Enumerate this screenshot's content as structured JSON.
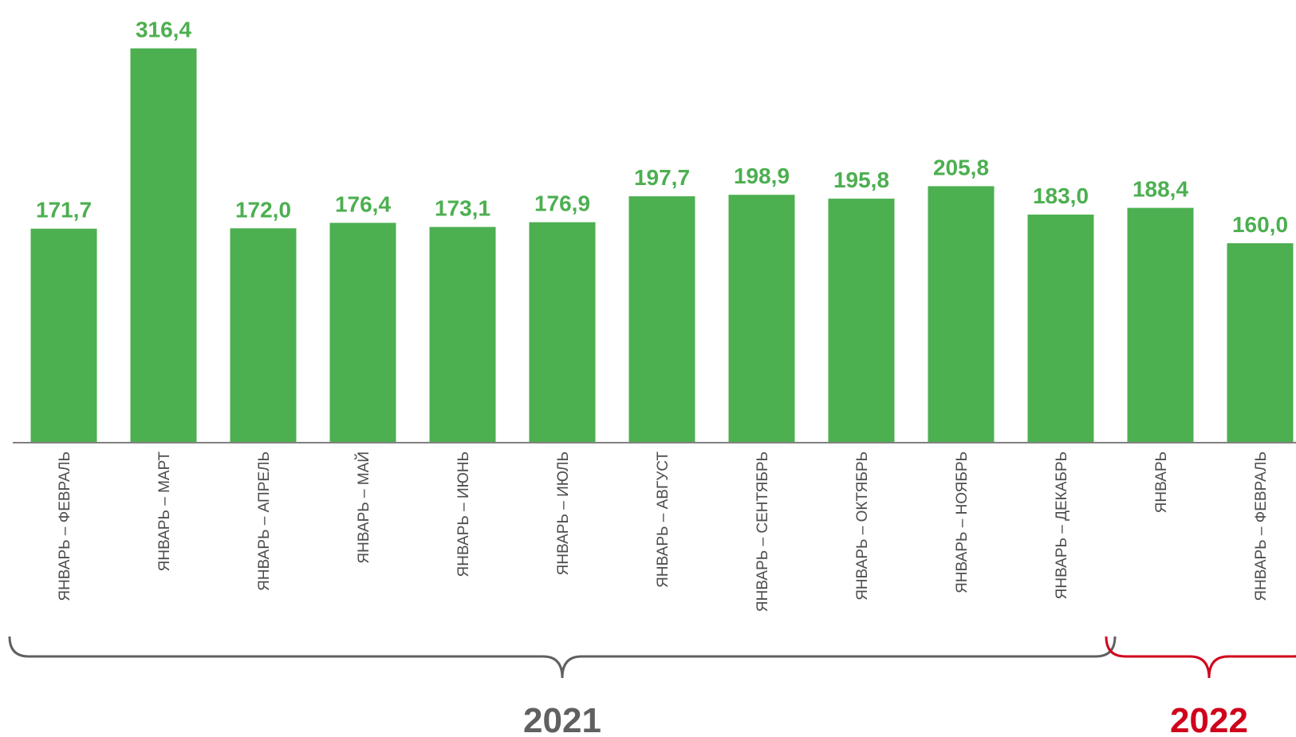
{
  "chart_data": {
    "type": "bar",
    "categories": [
      "ЯНВАРЬ – ФЕВРАЛЬ",
      "ЯНВАРЬ – МАРТ",
      "ЯНВАРЬ – АПРЕЛЬ",
      "ЯНВАРЬ – МАЙ",
      "ЯНВАРЬ – ИЮНЬ",
      "ЯНВАРЬ – ИЮЛЬ",
      "ЯНВАРЬ – АВГУСТ",
      "ЯНВАРЬ – СЕНТЯБРЬ",
      "ЯНВАРЬ – ОКТЯБРЬ",
      "ЯНВАРЬ – НОЯБРЬ",
      "ЯНВАРЬ – ДЕКАБРЬ",
      "ЯНВАРЬ",
      "ЯНВАРЬ – ФЕВРАЛЬ"
    ],
    "values": [
      171.7,
      316.4,
      172.0,
      176.4,
      173.1,
      176.9,
      197.7,
      198.9,
      195.8,
      205.8,
      183.0,
      188.4,
      160.0
    ],
    "value_labels": [
      "171,7",
      "316,4",
      "172,0",
      "176,4",
      "173,1",
      "176,9",
      "197,7",
      "198,9",
      "195,8",
      "205,8",
      "183,0",
      "188,4",
      "160,0"
    ],
    "ylim": [
      0,
      350
    ],
    "grid": false,
    "bar_color": "#4caf50",
    "groups": [
      {
        "label": "2021",
        "from": 0,
        "to": 10,
        "color": "#606060"
      },
      {
        "label": "2022",
        "from": 11,
        "to": 12,
        "color": "#d0021b"
      }
    ]
  }
}
